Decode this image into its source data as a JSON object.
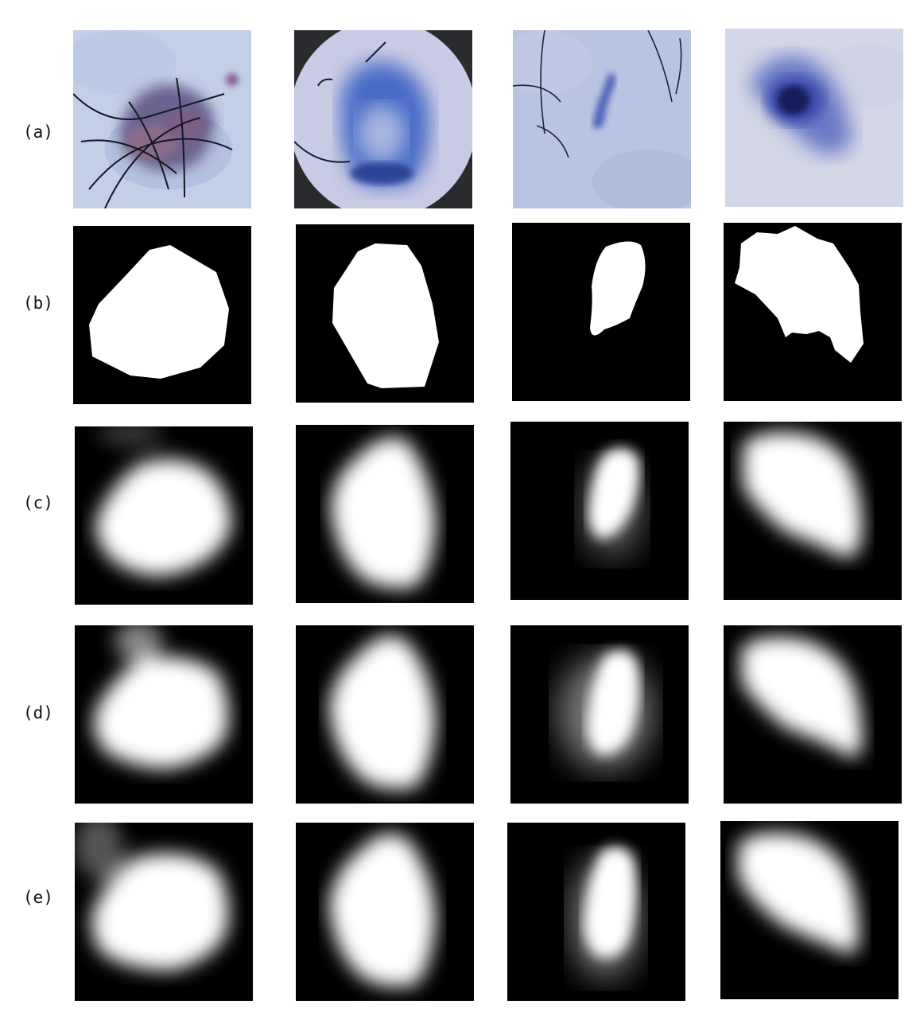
{
  "figure": {
    "rows": [
      {
        "label": "(a)",
        "kind": "dermoscopy image"
      },
      {
        "label": "(b)",
        "kind": "ground truth mask"
      },
      {
        "label": "(c)",
        "kind": "predicted probability map"
      },
      {
        "label": "(d)",
        "kind": "predicted probability map"
      },
      {
        "label": "(e)",
        "kind": "predicted probability map"
      }
    ],
    "colors": {
      "background": "#ffffff",
      "mask_foreground": "#ffffff",
      "mask_background": "#000000",
      "skin_light": "#c9d2e6",
      "lesion_blue": "#3a57b8",
      "lesion_dark": "#1a1f66",
      "lesion_purple": "#7a6790"
    }
  }
}
